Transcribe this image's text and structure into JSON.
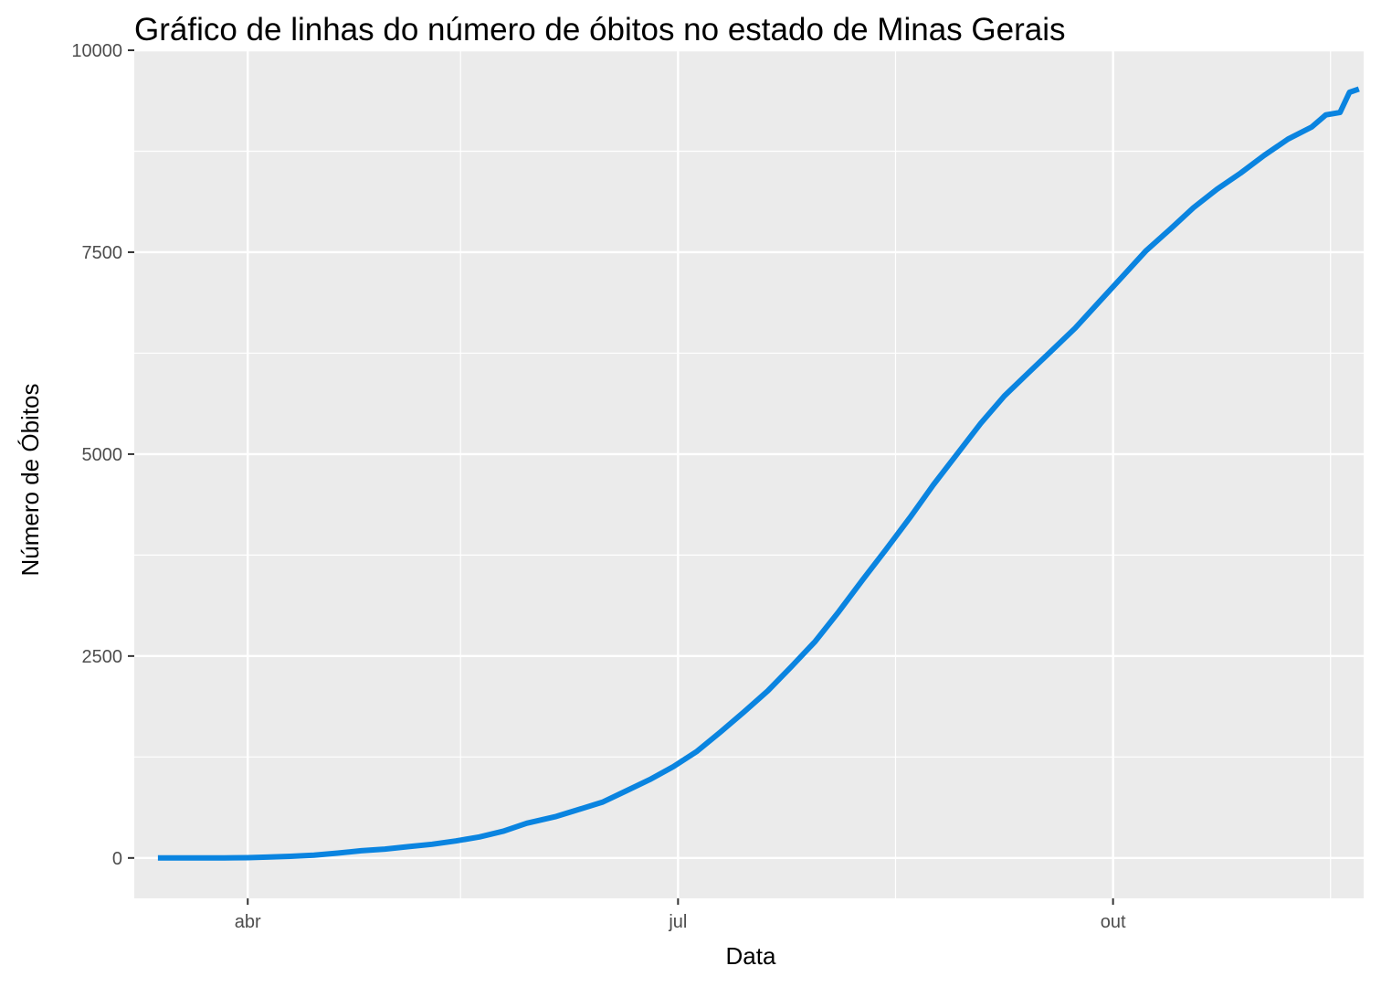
{
  "chart_data": {
    "type": "line",
    "title": "Gráfico de linhas do número de óbitos no estado de Minas Gerais",
    "xlabel": "Data",
    "ylabel": "Número de Óbitos",
    "x_axis_type": "date",
    "xlim": [
      "2020-03-08",
      "2020-11-23"
    ],
    "ylim": [
      -500,
      10000
    ],
    "x_ticks": [
      {
        "date": "2020-04-01",
        "label": "abr"
      },
      {
        "date": "2020-07-01",
        "label": "jul"
      },
      {
        "date": "2020-10-01",
        "label": "out"
      }
    ],
    "x_minor_gridlines": [
      "2020-05-16",
      "2020-08-16",
      "2020-11-16"
    ],
    "y_ticks": [
      0,
      2500,
      5000,
      7500,
      10000
    ],
    "y_minor_gridlines": [
      1250,
      3750,
      6250,
      8750
    ],
    "grid": true,
    "legend": "none",
    "colors": {
      "panel": "#EBEBEB",
      "grid": "#FFFFFF",
      "line": "#0A84E0",
      "tick_text": "#4D4D4D"
    },
    "series": [
      {
        "color": "#0A84E0",
        "points": [
          [
            "2020-03-13",
            0
          ],
          [
            "2020-03-20",
            0
          ],
          [
            "2020-03-27",
            1
          ],
          [
            "2020-04-01",
            3
          ],
          [
            "2020-04-05",
            10
          ],
          [
            "2020-04-10",
            20
          ],
          [
            "2020-04-15",
            35
          ],
          [
            "2020-04-20",
            60
          ],
          [
            "2020-04-25",
            90
          ],
          [
            "2020-04-30",
            110
          ],
          [
            "2020-05-05",
            140
          ],
          [
            "2020-05-10",
            170
          ],
          [
            "2020-05-15",
            210
          ],
          [
            "2020-05-20",
            260
          ],
          [
            "2020-05-25",
            330
          ],
          [
            "2020-05-30",
            430
          ],
          [
            "2020-06-05",
            510
          ],
          [
            "2020-06-10",
            600
          ],
          [
            "2020-06-15",
            690
          ],
          [
            "2020-06-20",
            830
          ],
          [
            "2020-06-25",
            970
          ],
          [
            "2020-06-30",
            1130
          ],
          [
            "2020-07-05",
            1320
          ],
          [
            "2020-07-10",
            1560
          ],
          [
            "2020-07-15",
            1810
          ],
          [
            "2020-07-20",
            2070
          ],
          [
            "2020-07-25",
            2370
          ],
          [
            "2020-07-30",
            2680
          ],
          [
            "2020-08-04",
            3050
          ],
          [
            "2020-08-09",
            3440
          ],
          [
            "2020-08-14",
            3820
          ],
          [
            "2020-08-19",
            4210
          ],
          [
            "2020-08-24",
            4620
          ],
          [
            "2020-08-29",
            5000
          ],
          [
            "2020-09-03",
            5380
          ],
          [
            "2020-09-08",
            5720
          ],
          [
            "2020-09-13",
            6000
          ],
          [
            "2020-09-18",
            6280
          ],
          [
            "2020-09-23",
            6560
          ],
          [
            "2020-09-28",
            6880
          ],
          [
            "2020-10-03",
            7200
          ],
          [
            "2020-10-08",
            7520
          ],
          [
            "2020-10-13",
            7780
          ],
          [
            "2020-10-18",
            8050
          ],
          [
            "2020-10-23",
            8280
          ],
          [
            "2020-10-28",
            8480
          ],
          [
            "2020-11-02",
            8700
          ],
          [
            "2020-11-07",
            8900
          ],
          [
            "2020-11-12",
            9050
          ],
          [
            "2020-11-15",
            9200
          ],
          [
            "2020-11-18",
            9230
          ],
          [
            "2020-11-20",
            9480
          ],
          [
            "2020-11-22",
            9520
          ]
        ]
      }
    ]
  }
}
